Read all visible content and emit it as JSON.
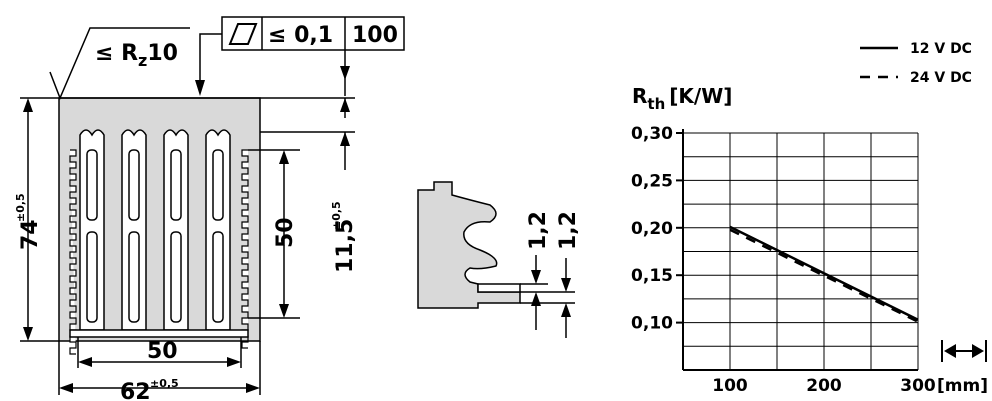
{
  "heatsink": {
    "height": "74",
    "height_tol": "±0,5",
    "width": "62",
    "width_tol": "±0,5",
    "fin_span": "50",
    "fin_height": "50",
    "offset": "11,5",
    "offset_tol": "±0,5",
    "roughness_prefix": "≤ R",
    "roughness_sub": "z",
    "roughness_value": "10",
    "flatness_value": "≤ 0,1",
    "flatness_length": "100"
  },
  "detail": {
    "dim_a": "1,2",
    "dim_b": "1,2"
  },
  "chart_data": {
    "type": "line",
    "ylabel_main": "R",
    "ylabel_sub": "th",
    "ylabel_unit": "[K/W]",
    "xlabel": "[mm]",
    "xlim": [
      50,
      300
    ],
    "ylim": [
      0.05,
      0.3
    ],
    "x_ticks": [
      100,
      200,
      300
    ],
    "x_tick_labels": [
      "100",
      "200",
      "300"
    ],
    "y_ticks": [
      0.1,
      0.15,
      0.2,
      0.25,
      0.3
    ],
    "y_tick_labels": [
      "0,10",
      "0,15",
      "0,20",
      "0,25",
      "0,30"
    ],
    "grid": true,
    "legend_position": "top-right",
    "series": [
      {
        "name": "12 V DC",
        "style": "solid",
        "x": [
          100,
          300
        ],
        "y": [
          0.201,
          0.103
        ]
      },
      {
        "name": "24 V DC",
        "style": "dashed",
        "x": [
          100,
          300
        ],
        "y": [
          0.198,
          0.101
        ]
      }
    ]
  }
}
